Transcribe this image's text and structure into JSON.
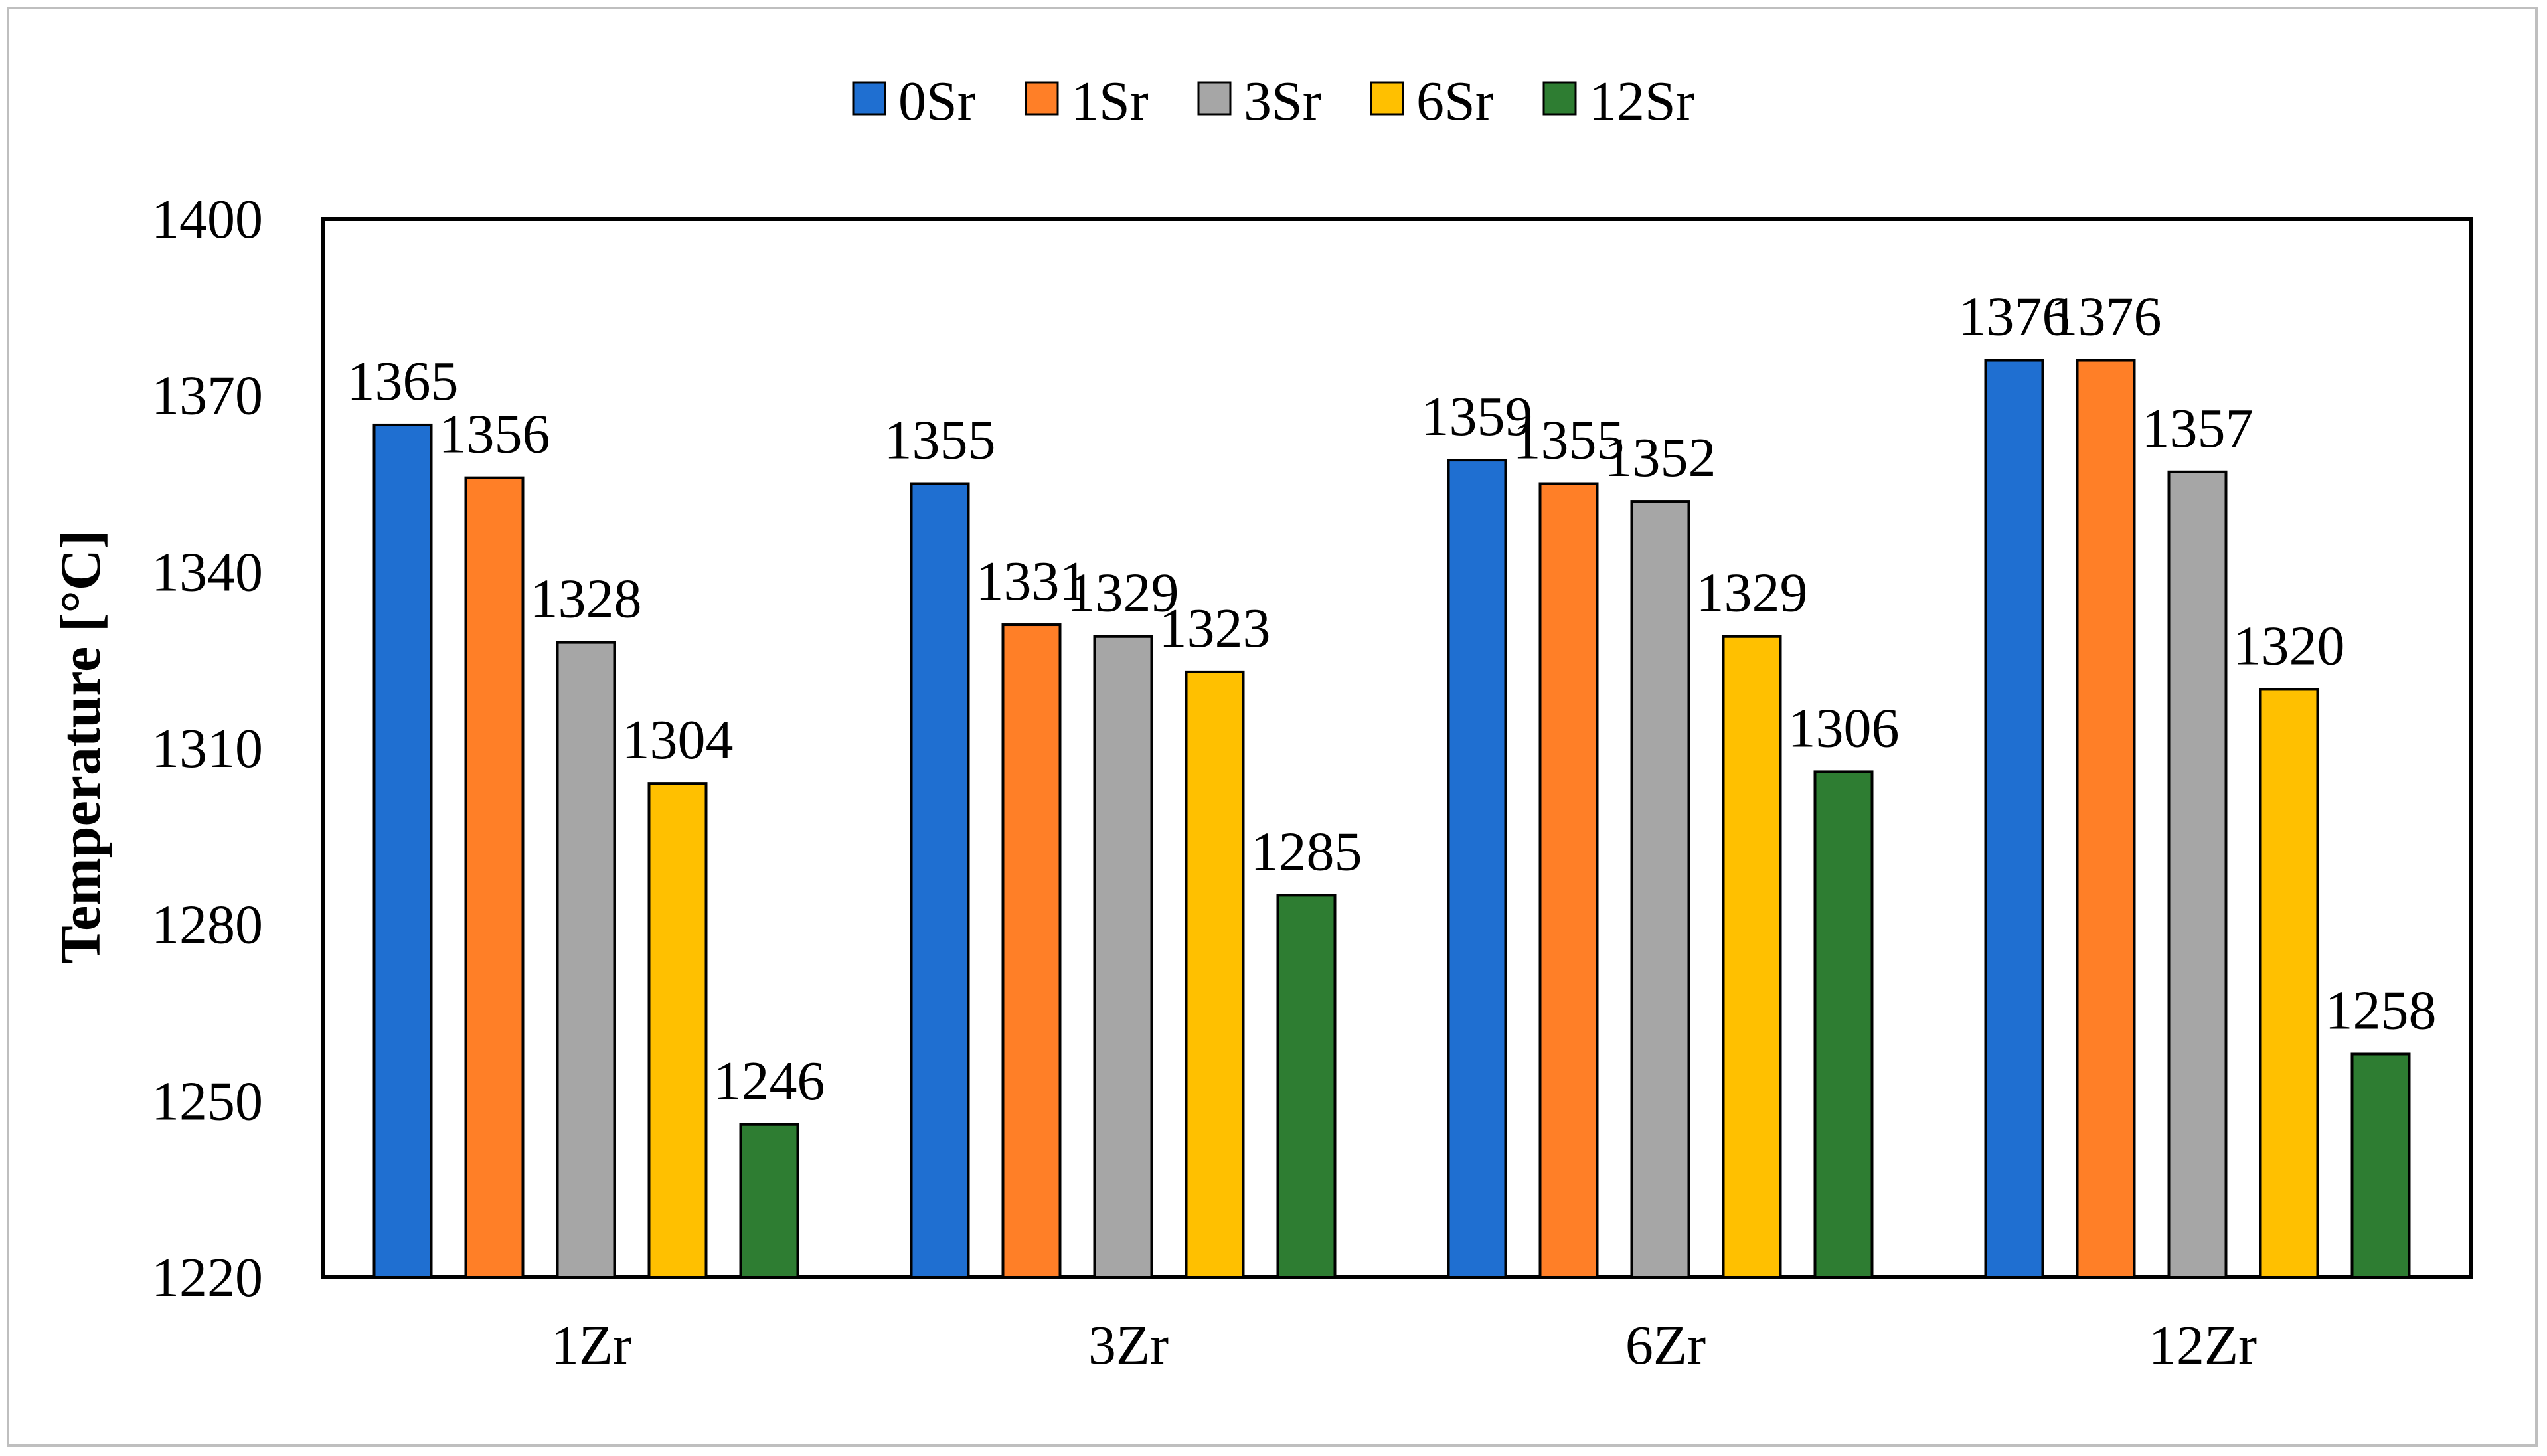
{
  "chart_data": {
    "type": "bar",
    "title": "",
    "xlabel": "",
    "ylabel": "Temperature [°C]",
    "ylim": [
      1220,
      1400
    ],
    "yticks": [
      1220,
      1250,
      1280,
      1310,
      1340,
      1370,
      1400
    ],
    "grid": false,
    "legend_position": "top",
    "categories": [
      "1Zr",
      "3Zr",
      "6Zr",
      "12Zr"
    ],
    "series": [
      {
        "name": "0Sr",
        "color": "#1f6fd1",
        "values": [
          1365,
          1355,
          1359,
          1376
        ]
      },
      {
        "name": "1Sr",
        "color": "#ff7f27",
        "values": [
          1356,
          1331,
          1355,
          1376
        ]
      },
      {
        "name": "3Sr",
        "color": "#a6a6a6",
        "values": [
          1328,
          1329,
          1352,
          1357
        ]
      },
      {
        "name": "6Sr",
        "color": "#ffc000",
        "values": [
          1304,
          1323,
          1329,
          1320
        ]
      },
      {
        "name": "12Sr",
        "color": "#2e7d32",
        "values": [
          1246,
          1285,
          1306,
          1258
        ]
      }
    ]
  }
}
